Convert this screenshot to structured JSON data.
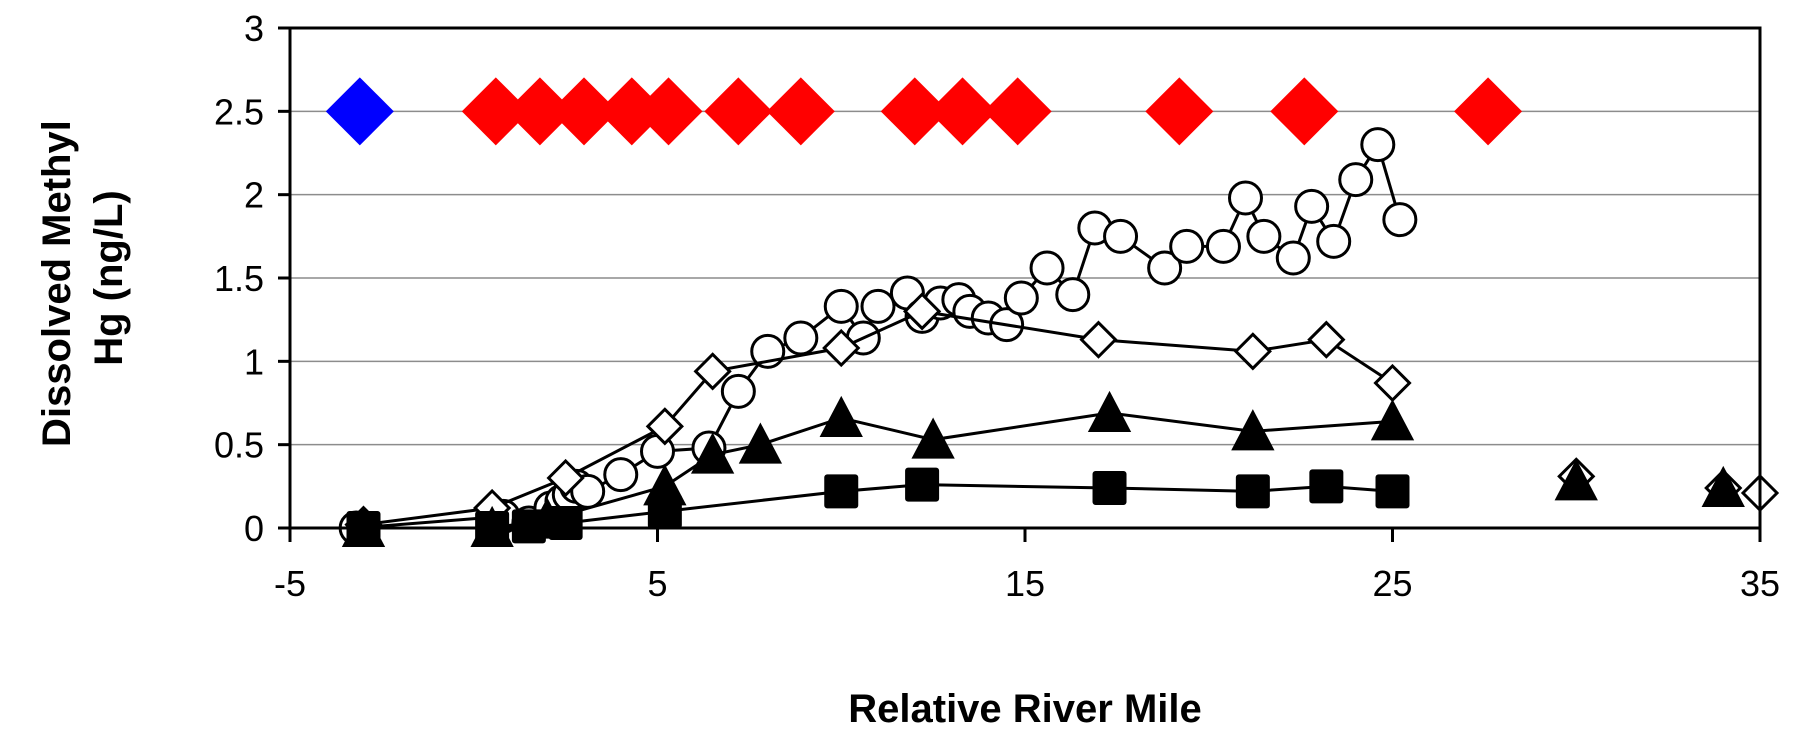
{
  "chart_data": {
    "type": "scatter",
    "xlabel": "Relative River Mile",
    "ylabel_lines": [
      "Dissolved Methyl",
      "Hg (ng/L)"
    ],
    "xlim": [
      -5,
      35
    ],
    "ylim": [
      0,
      3
    ],
    "xticks": [
      -5,
      5,
      15,
      25,
      35
    ],
    "xtick_labels": [
      "-5",
      "5",
      "15",
      "25",
      "35"
    ],
    "yticks": [
      0,
      0.5,
      1,
      1.5,
      2,
      2.5,
      3
    ],
    "ytick_labels": [
      "0",
      "0.5",
      "1",
      "1.5",
      "2",
      "2.5",
      "3"
    ],
    "grid": "horizontal",
    "legend": "none",
    "series": [
      {
        "marker": "circle-open",
        "color": "#000000",
        "fill": "#ffffff",
        "connected": true,
        "points": [
          [
            -3.2,
            0.0
          ],
          [
            0.8,
            0.07
          ],
          [
            1.5,
            0.03
          ],
          [
            2.1,
            0.12
          ],
          [
            2.4,
            0.16
          ],
          [
            2.6,
            0.2
          ],
          [
            2.8,
            0.25
          ],
          [
            3.1,
            0.22
          ],
          [
            4.0,
            0.32
          ],
          [
            5.0,
            0.46
          ],
          [
            6.4,
            0.48
          ],
          [
            7.2,
            0.82
          ],
          [
            8.0,
            1.06
          ],
          [
            8.9,
            1.14
          ],
          [
            10.0,
            1.33
          ],
          [
            10.6,
            1.14
          ],
          [
            11.0,
            1.33
          ],
          [
            11.8,
            1.41
          ],
          [
            12.2,
            1.27
          ],
          [
            12.7,
            1.35
          ],
          [
            13.2,
            1.37
          ],
          [
            13.5,
            1.3
          ],
          [
            14.0,
            1.26
          ],
          [
            14.5,
            1.22
          ],
          [
            14.9,
            1.38
          ],
          [
            15.6,
            1.56
          ],
          [
            16.3,
            1.4
          ],
          [
            16.9,
            1.8
          ],
          [
            17.6,
            1.75
          ],
          [
            18.8,
            1.56
          ],
          [
            19.4,
            1.69
          ],
          [
            20.4,
            1.69
          ],
          [
            21.0,
            1.98
          ],
          [
            21.5,
            1.75
          ],
          [
            22.3,
            1.62
          ],
          [
            22.8,
            1.93
          ],
          [
            23.4,
            1.72
          ],
          [
            24.0,
            2.09
          ],
          [
            24.6,
            2.3
          ],
          [
            25.2,
            1.85
          ]
        ]
      },
      {
        "marker": "diamond-open",
        "color": "#000000",
        "fill": "#ffffff",
        "connected": true,
        "points": [
          [
            -3.0,
            0.02
          ],
          [
            0.5,
            0.12
          ],
          [
            2.5,
            0.3
          ],
          [
            5.2,
            0.61
          ],
          [
            6.5,
            0.94
          ],
          [
            10.0,
            1.08
          ],
          [
            12.2,
            1.3
          ],
          [
            17.0,
            1.13
          ],
          [
            21.2,
            1.06
          ],
          [
            23.2,
            1.13
          ],
          [
            25.0,
            0.87
          ]
        ],
        "extra_points": [
          [
            30.0,
            0.31
          ],
          [
            34.0,
            0.24
          ],
          [
            35.0,
            0.21
          ]
        ]
      },
      {
        "marker": "triangle-filled",
        "color": "#000000",
        "fill": "#000000",
        "connected": true,
        "points": [
          [
            -3.0,
            0.0
          ],
          [
            0.5,
            0.0
          ],
          [
            2.0,
            0.05
          ],
          [
            5.2,
            0.25
          ],
          [
            6.5,
            0.44
          ],
          [
            7.8,
            0.5
          ],
          [
            10.0,
            0.66
          ],
          [
            12.5,
            0.53
          ],
          [
            17.3,
            0.69
          ],
          [
            21.2,
            0.58
          ],
          [
            25.0,
            0.64
          ]
        ],
        "extra_points": [
          [
            30.0,
            0.28
          ],
          [
            34.0,
            0.24
          ]
        ]
      },
      {
        "marker": "square-filled",
        "color": "#000000",
        "fill": "#000000",
        "connected": true,
        "points": [
          [
            -3.0,
            0.0
          ],
          [
            0.5,
            0.0
          ],
          [
            1.5,
            0.01
          ],
          [
            2.5,
            0.03
          ],
          [
            5.2,
            0.1
          ],
          [
            10.0,
            0.22
          ],
          [
            12.2,
            0.26
          ],
          [
            17.3,
            0.24
          ],
          [
            21.2,
            0.22
          ],
          [
            23.2,
            0.25
          ],
          [
            25.0,
            0.22
          ]
        ]
      },
      {
        "marker": "diamond-filled",
        "color": "#0000ff",
        "fill": "#0000ff",
        "connected": false,
        "points": [
          [
            -3.1,
            2.5
          ]
        ]
      },
      {
        "marker": "diamond-filled",
        "color": "#ff0000",
        "fill": "#ff0000",
        "connected": false,
        "points": [
          [
            0.6,
            2.5
          ],
          [
            1.8,
            2.5
          ],
          [
            3.0,
            2.5
          ],
          [
            4.3,
            2.5
          ],
          [
            5.3,
            2.5
          ],
          [
            7.2,
            2.5
          ],
          [
            8.9,
            2.5
          ],
          [
            12.0,
            2.5
          ],
          [
            13.3,
            2.5
          ],
          [
            14.8,
            2.5
          ],
          [
            19.2,
            2.5
          ],
          [
            22.6,
            2.5
          ],
          [
            27.6,
            2.5
          ]
        ]
      }
    ]
  }
}
